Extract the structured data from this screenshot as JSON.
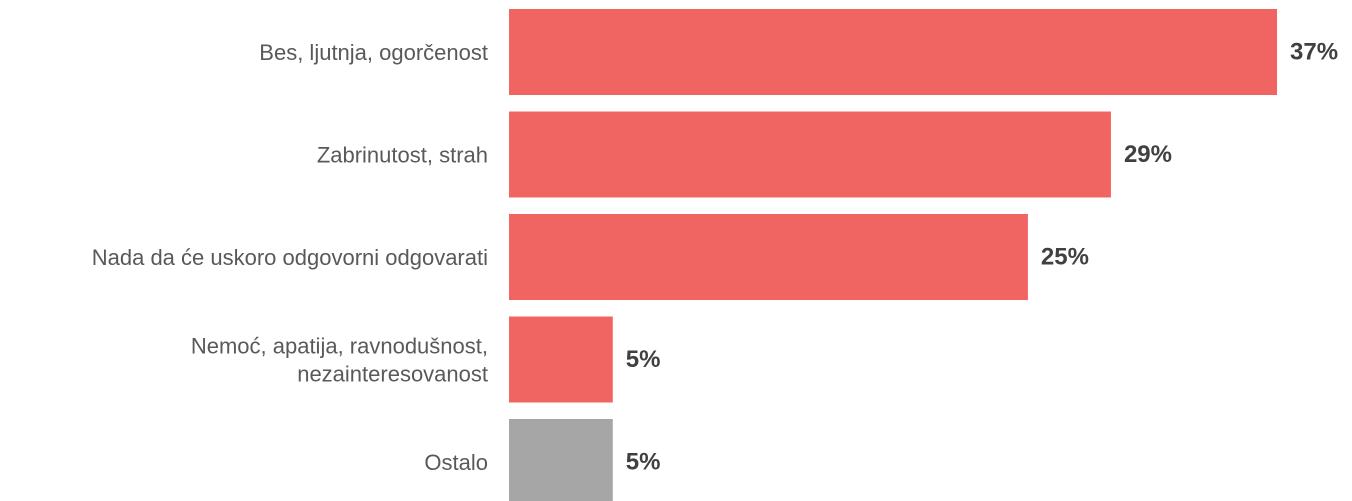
{
  "chart_data": {
    "type": "bar",
    "orientation": "horizontal",
    "categories": [
      [
        "Bes, ljutnja, ogorčenost"
      ],
      [
        "Zabrinutost, strah"
      ],
      [
        "Nada da će uskoro odgovorni odgovarati"
      ],
      [
        "Nemoć, apatija, ravnodušnost,",
        "nezainteresovanost"
      ],
      [
        "Ostalo"
      ]
    ],
    "values": [
      37,
      29,
      25,
      5,
      5
    ],
    "value_labels": [
      "37%",
      "29%",
      "25%",
      "5%",
      "5%"
    ],
    "bar_colors": [
      "#f06461",
      "#f06461",
      "#f06461",
      "#f06461",
      "#a6a6a6"
    ],
    "xlim": [
      0,
      37
    ],
    "title": "",
    "xlabel": "",
    "ylabel": ""
  }
}
